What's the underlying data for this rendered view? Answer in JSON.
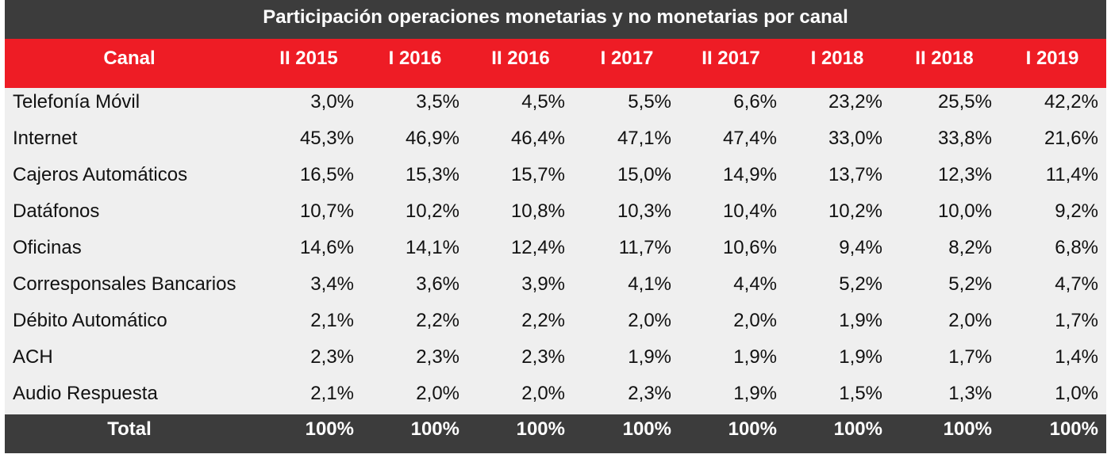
{
  "chart_data": {
    "type": "table",
    "title": "Participación operaciones monetarias y no monetarias por canal",
    "columns": [
      "Canal",
      "II 2015",
      "I 2016",
      "II 2016",
      "I 2017",
      "II 2017",
      "I 2018",
      "II 2018",
      "I 2019"
    ],
    "rows": [
      {
        "canal": "Telefonía Móvil",
        "values": [
          "3,0%",
          "3,5%",
          "4,5%",
          "5,5%",
          "6,6%",
          "23,2%",
          "25,5%",
          "42,2%"
        ]
      },
      {
        "canal": "Internet",
        "values": [
          "45,3%",
          "46,9%",
          "46,4%",
          "47,1%",
          "47,4%",
          "33,0%",
          "33,8%",
          "21,6%"
        ]
      },
      {
        "canal": "Cajeros Automáticos",
        "values": [
          "16,5%",
          "15,3%",
          "15,7%",
          "15,0%",
          "14,9%",
          "13,7%",
          "12,3%",
          "11,4%"
        ]
      },
      {
        "canal": "Datáfonos",
        "values": [
          "10,7%",
          "10,2%",
          "10,8%",
          "10,3%",
          "10,4%",
          "10,2%",
          "10,0%",
          "9,2%"
        ]
      },
      {
        "canal": "Oficinas",
        "values": [
          "14,6%",
          "14,1%",
          "12,4%",
          "11,7%",
          "10,6%",
          "9,4%",
          "8,2%",
          "6,8%"
        ]
      },
      {
        "canal": "Corresponsales Bancarios",
        "values": [
          "3,4%",
          "3,6%",
          "3,9%",
          "4,1%",
          "4,4%",
          "5,2%",
          "5,2%",
          "4,7%"
        ]
      },
      {
        "canal": "Débito Automático",
        "values": [
          "2,1%",
          "2,2%",
          "2,2%",
          "2,0%",
          "2,0%",
          "1,9%",
          "2,0%",
          "1,7%"
        ]
      },
      {
        "canal": "ACH",
        "values": [
          "2,3%",
          "2,3%",
          "2,3%",
          "1,9%",
          "1,9%",
          "1,9%",
          "1,7%",
          "1,4%"
        ]
      },
      {
        "canal": "Audio Respuesta",
        "values": [
          "2,1%",
          "2,0%",
          "2,0%",
          "2,3%",
          "1,9%",
          "1,5%",
          "1,3%",
          "1,0%"
        ]
      }
    ],
    "total": {
      "label": "Total",
      "values": [
        "100%",
        "100%",
        "100%",
        "100%",
        "100%",
        "100%",
        "100%",
        "100%"
      ]
    }
  },
  "colors": {
    "title_bg": "#3c3c3c",
    "header_bg": "#ee1c25",
    "body_bg": "#efefef",
    "total_bg": "#3c3c3c",
    "header_text": "#ffffff",
    "body_text": "#111111"
  }
}
